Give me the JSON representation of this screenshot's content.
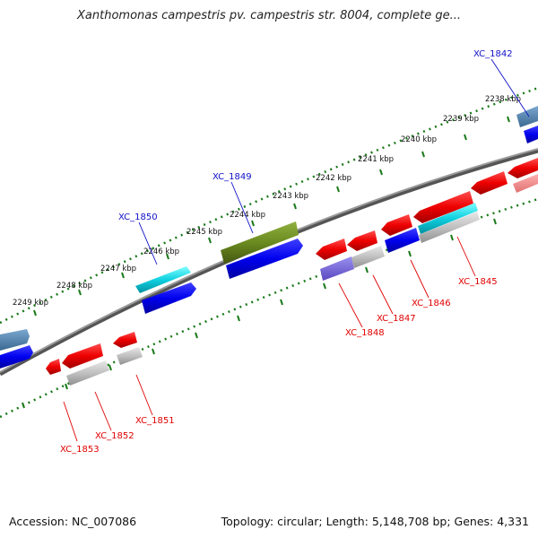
{
  "title": "Xanthomonas campestris pv. campestris str. 8004, complete ge...",
  "footer": {
    "accession": "Accession: NC_007086",
    "summary": "Topology: circular; Length: 5,148,708 bp; Genes: 4,331"
  },
  "ticks": [
    "2238 kbp",
    "2239 kbp",
    "2240 kbp",
    "2241 kbp",
    "2242 kbp",
    "2243 kbp",
    "2244 kbp",
    "2245 kbp",
    "2246 kbp",
    "2247 kbp",
    "2248 kbp",
    "2249 kbp"
  ],
  "gene_labels": {
    "forward": [
      "XC_1842",
      "XC_1849",
      "XC_1850"
    ],
    "reverse": [
      "XC_1845",
      "XC_1846",
      "XC_1847",
      "XC_1848",
      "XC_1851",
      "XC_1852",
      "XC_1853"
    ]
  },
  "colors": {
    "forward_label": "#1010c8",
    "reverse_label": "#e00000",
    "backbone": "#808080",
    "tick_dots": "#1a7a1a"
  }
}
